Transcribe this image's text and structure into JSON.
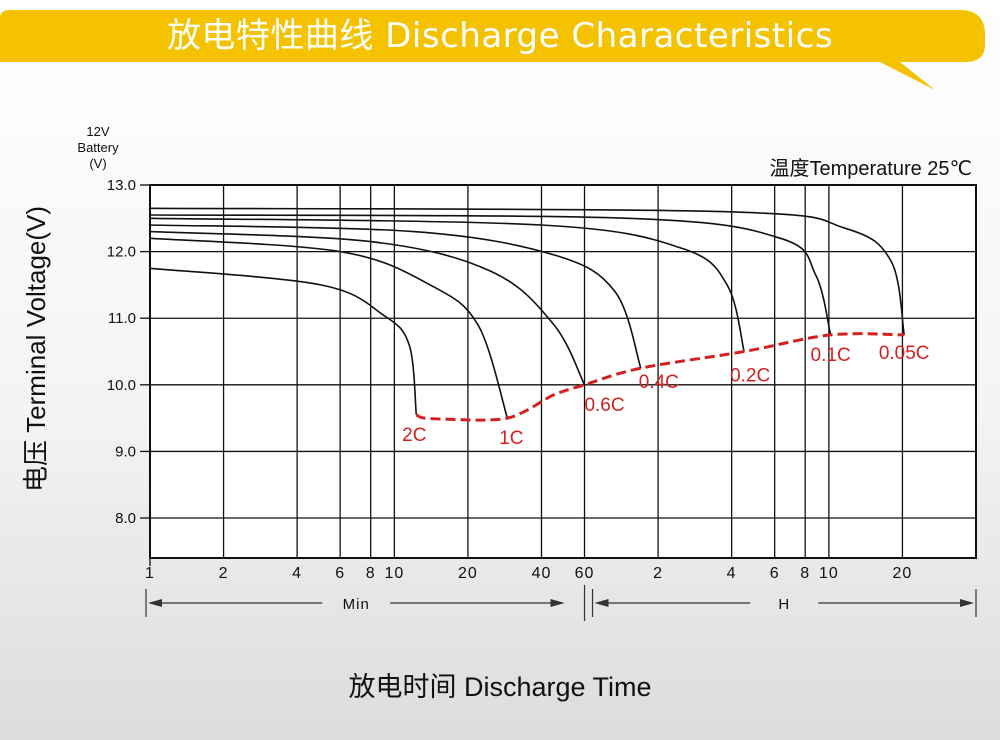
{
  "banner": {
    "title": "放电特性曲线 Discharge Characteristics",
    "color": "#F5C200"
  },
  "chart_data": {
    "type": "line",
    "title": "放电特性曲线 Discharge Characteristics",
    "y_axis": {
      "label": "电压 Terminal Voltage(V)",
      "unit_header": [
        "12V",
        "Battery",
        "(V)"
      ],
      "range": [
        7.4,
        13.0
      ],
      "ticks": [
        8.0,
        9.0,
        10.0,
        11.0,
        12.0,
        13.0
      ],
      "tick_labels": [
        "8.0",
        "9.0",
        "10.0",
        "11.0",
        "12.0",
        "13.0"
      ]
    },
    "x_axis": {
      "label": "放电时间 Discharge Time",
      "scale": "log",
      "unit": "minutes",
      "range_min": [
        1,
        2400
      ],
      "tick_values_min": [
        1,
        2,
        4,
        6,
        8,
        10,
        20,
        40,
        60,
        120,
        240,
        360,
        480,
        600,
        1200
      ],
      "tick_labels": [
        "1",
        "2",
        "4",
        "6",
        "8",
        "10",
        "20",
        "40",
        "60",
        "2",
        "4",
        "6",
        "8",
        "10",
        "20"
      ],
      "segments": [
        {
          "label": "Min",
          "from": 1,
          "to": 60
        },
        {
          "label": "H",
          "from": 60,
          "to": 2400
        }
      ]
    },
    "annotation": "温度Temperature 25℃",
    "grid": true,
    "curve_color": "#111111",
    "cutoff_color": "#D42020",
    "series": [
      {
        "name": "2C",
        "points": [
          [
            1,
            11.75
          ],
          [
            5,
            11.5
          ],
          [
            9,
            11.05
          ],
          [
            11.5,
            10.6
          ],
          [
            12.3,
            9.55
          ]
        ]
      },
      {
        "name": "1C",
        "points": [
          [
            1,
            12.2
          ],
          [
            6,
            12.0
          ],
          [
            14,
            11.5
          ],
          [
            22,
            10.9
          ],
          [
            29,
            9.5
          ]
        ]
      },
      {
        "name": "0.6C",
        "points": [
          [
            1,
            12.3
          ],
          [
            8,
            12.15
          ],
          [
            25,
            11.7
          ],
          [
            45,
            10.9
          ],
          [
            60,
            10.0
          ]
        ]
      },
      {
        "name": "0.4C",
        "points": [
          [
            1,
            12.4
          ],
          [
            12,
            12.3
          ],
          [
            45,
            11.95
          ],
          [
            80,
            11.4
          ],
          [
            102,
            10.25
          ]
        ]
      },
      {
        "name": "0.2C",
        "points": [
          [
            1,
            12.5
          ],
          [
            40,
            12.4
          ],
          [
            150,
            12.05
          ],
          [
            230,
            11.5
          ],
          [
            270,
            10.5
          ]
        ]
      },
      {
        "name": "0.1C",
        "points": [
          [
            1,
            12.55
          ],
          [
            90,
            12.5
          ],
          [
            380,
            12.2
          ],
          [
            530,
            11.65
          ],
          [
            610,
            10.75
          ]
        ]
      },
      {
        "name": "0.05C",
        "points": [
          [
            1,
            12.65
          ],
          [
            220,
            12.6
          ],
          [
            700,
            12.35
          ],
          [
            1080,
            11.85
          ],
          [
            1220,
            10.75
          ]
        ]
      }
    ],
    "cutoff_line": [
      [
        12.3,
        9.55
      ],
      [
        13.3,
        9.5
      ],
      [
        18,
        9.48
      ],
      [
        23,
        9.47
      ],
      [
        29,
        9.5
      ],
      [
        35,
        9.62
      ],
      [
        45,
        9.85
      ],
      [
        60,
        10.0
      ],
      [
        102,
        10.25
      ],
      [
        270,
        10.5
      ],
      [
        610,
        10.75
      ],
      [
        1220,
        10.75
      ]
    ]
  }
}
